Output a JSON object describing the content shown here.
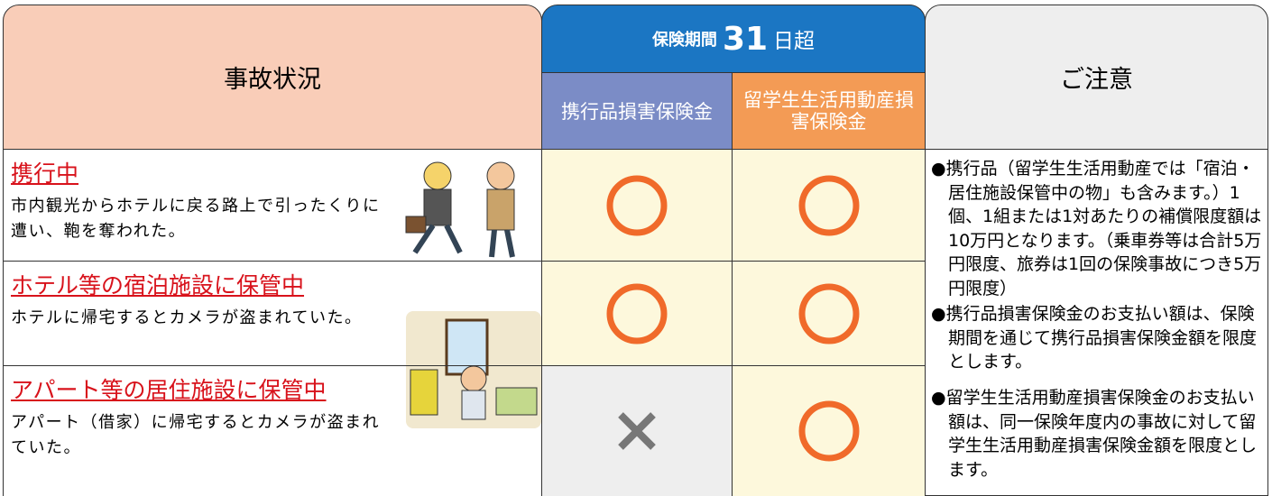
{
  "header": {
    "situation": "事故状況",
    "coverage": {
      "prefix": "保険期間",
      "number": "31",
      "suffix": "日超"
    },
    "columns": [
      "携行品損害保険金",
      "留学生生活用動産損害保険金"
    ],
    "notes": "ご注意"
  },
  "rows": [
    {
      "title": "携行中",
      "description": "市内観光からホテルに戻る路上で引ったくりに遭い、鞄を奪われた。",
      "covered": [
        true,
        true
      ]
    },
    {
      "title": "ホテル等の宿泊施設に保管中",
      "description": "ホテルに帰宅するとカメラが盗まれていた。",
      "covered": [
        true,
        true
      ]
    },
    {
      "title": "アパート等の居住施設に保管中",
      "description": "アパート（借家）に帰宅するとカメラが盗まれていた。",
      "covered": [
        false,
        true
      ]
    }
  ],
  "notes": [
    "●携行品（留学生生活用動産では「宿泊・居住施設保管中の物」も含みます。）1個、1組または1対あたりの補償限度額は10万円となります。（乗車券等は合計5万円限度、旅券は1回の保険事故につき5万円限度）",
    "●携行品損害保険金のお支払い額は、保険期間を通じて携行品損害保険金額を限度とします。",
    "●留学生生活用動産損害保険金のお支払い額は、同一保険年度内の事故に対して留学生生活用動産損害保険金額を限度とします。"
  ]
}
